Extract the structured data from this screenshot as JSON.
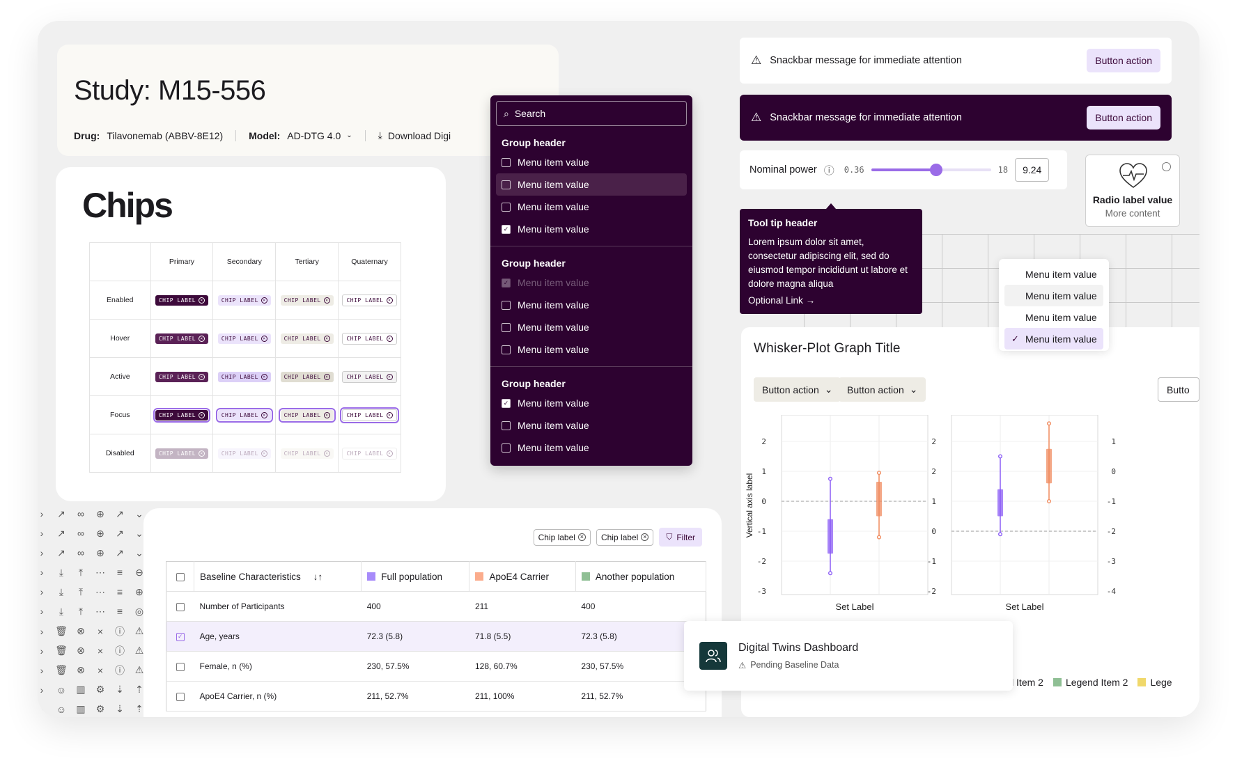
{
  "study": {
    "title": "Study: M15-556",
    "drug_label": "Drug:",
    "drug_value": "Tilavonemab (ABBV-8E12)",
    "model_label": "Model:",
    "model_value": "AD-DTG 4.0",
    "download": "Download Digi"
  },
  "chips": {
    "title": "Chips",
    "columns": [
      "Primary",
      "Secondary",
      "Tertiary",
      "Quaternary"
    ],
    "rows": [
      "Enabled",
      "Hover",
      "Active",
      "Focus",
      "Disabled"
    ],
    "chip_label": "CHIP LABEL"
  },
  "menu": {
    "search_placeholder": "Search",
    "groups": [
      {
        "header": "Group header",
        "items": [
          {
            "label": "Menu item value",
            "checked": false
          },
          {
            "label": "Menu item value",
            "checked": false,
            "selected": true
          },
          {
            "label": "Menu item value",
            "checked": false
          },
          {
            "label": "Menu item value",
            "checked": true
          }
        ]
      },
      {
        "header": "Group header",
        "items": [
          {
            "label": "Menu item value",
            "checked": true,
            "disabled": true
          },
          {
            "label": "Menu item value",
            "checked": false
          },
          {
            "label": "Menu item value",
            "checked": false
          },
          {
            "label": "Menu item value",
            "checked": false
          }
        ]
      },
      {
        "header": "Group header",
        "items": [
          {
            "label": "Menu item value",
            "checked": true
          },
          {
            "label": "Menu item value",
            "checked": false
          },
          {
            "label": "Menu item value",
            "checked": false
          }
        ]
      }
    ]
  },
  "snackbars": [
    {
      "message": "Snackbar message for immediate attention",
      "action": "Button action"
    },
    {
      "message": "Snackbar message for immediate attention",
      "action": "Button action"
    }
  ],
  "power": {
    "label": "Nominal power",
    "min": "0.36",
    "max": "18",
    "value": "9.24",
    "fraction": 0.54
  },
  "radio": {
    "label": "Radio label value",
    "content": "More content"
  },
  "tooltip": {
    "header": "Tool tip header",
    "body": "Lorem ipsum dolor sit amet, consectetur adipiscing elit, sed do eiusmod tempor incididunt ut labore et dolore magna aliqua",
    "link": "Optional Link"
  },
  "small_menu": {
    "items": [
      "Menu item value",
      "Menu item value",
      "Menu item value",
      "Menu item value"
    ]
  },
  "table": {
    "chips": [
      "Chip label",
      "Chip label"
    ],
    "filter": "Filter",
    "headers": [
      "Baseline Characteristics",
      "Full population",
      "ApoE4 Carrier",
      "Another population"
    ],
    "rows": [
      [
        "Number of Participants",
        "400",
        "211",
        "400"
      ],
      [
        "Age, years",
        "72.3 (5.8)",
        "71.8 (5.5)",
        "72.3 (5.8)"
      ],
      [
        "Female, n (%)",
        "230, 57.5%",
        "128, 60.7%",
        "230, 57.5%"
      ],
      [
        "ApoE4 Carrier, n (%)",
        "211, 52.7%",
        "211, 100%",
        "211, 52.7%"
      ]
    ],
    "colors": [
      "#a78bfa",
      "#fbac8c",
      "#8fbf94"
    ]
  },
  "plot": {
    "title": "Whisker-Plot Graph Title",
    "buttons": [
      "Button action",
      "Button action",
      "Butto"
    ],
    "ylabel": "Vertical axis label",
    "legend": [
      "gend Item 2",
      "Legend Item 2",
      "Lege"
    ],
    "legend_colors": [
      "#8fbf94",
      "#f0d86b"
    ],
    "chart_data": {
      "type": "boxplot",
      "ylabel": "Vertical axis label",
      "panels": [
        {
          "xlabel": "Set Label",
          "y_ticks": [
            "2",
            "1",
            "0",
            "-1",
            "-2",
            "-3"
          ],
          "boxes": [
            {
              "color": "#8b5cf6",
              "min": -2.4,
              "q1": -1.75,
              "q3": -0.6,
              "max": 0.75
            },
            {
              "color": "#f08a5d",
              "min": -1.2,
              "q1": -0.5,
              "q3": 0.65,
              "max": 0.95
            }
          ]
        },
        {
          "xlabel": "Set Label",
          "y_ticks": [
            "2",
            "2",
            "1",
            "0",
            "-1",
            "-2"
          ],
          "boxes": [
            {
              "color": "#8b5cf6",
              "min": -0.1,
              "q1": 0.5,
              "q3": 1.4,
              "max": 2.5
            },
            {
              "color": "#f08a5d",
              "min": 1.0,
              "q1": 1.6,
              "q3": 2.75,
              "max": 3.6
            }
          ]
        },
        {
          "y_ticks": [
            "1",
            "0",
            "-1",
            "-2",
            "-3",
            "-4"
          ]
        }
      ]
    }
  },
  "dashboard": {
    "title": "Digital Twins Dashboard",
    "status": "Pending Baseline Data"
  }
}
